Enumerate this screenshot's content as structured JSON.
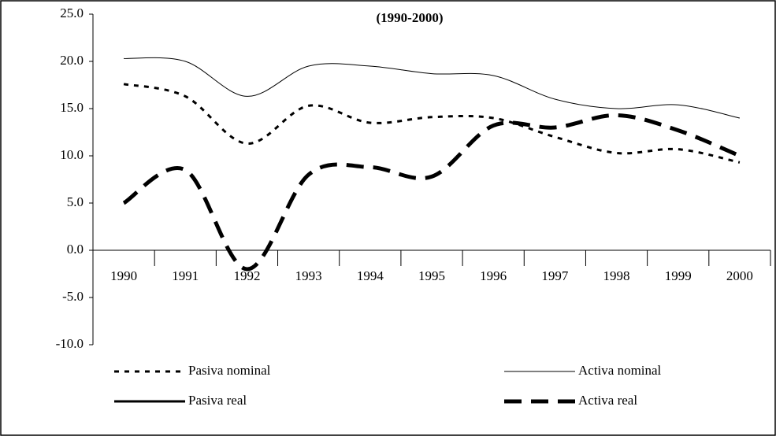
{
  "chart_data": {
    "type": "line",
    "title": "(1990-2000)",
    "categories": [
      "1990",
      "1991",
      "1992",
      "1993",
      "1994",
      "1995",
      "1996",
      "1997",
      "1998",
      "1999",
      "2000"
    ],
    "series": [
      {
        "name": "Pasiva nominal",
        "color": "#000000",
        "dash": "6,7",
        "width": 3,
        "values": [
          17.6,
          16.3,
          11.3,
          15.3,
          13.5,
          14.1,
          14.0,
          12.0,
          10.3,
          10.7,
          9.3
        ]
      },
      {
        "name": "Activa nominal",
        "color": "#000000",
        "dash": "none",
        "width": 1,
        "values": [
          20.3,
          20.0,
          16.3,
          19.5,
          19.5,
          18.7,
          18.5,
          16.0,
          15.0,
          15.4,
          14.0
        ]
      },
      {
        "name": "Pasiva real",
        "color": "#000000",
        "dash": "none",
        "width": 3,
        "values": [
          null,
          null,
          null,
          null,
          null,
          null,
          null,
          null,
          null,
          null,
          null
        ]
      },
      {
        "name": "Activa real",
        "color": "#000000",
        "dash": "22,12",
        "width": 5,
        "values": [
          5.0,
          8.5,
          -2.0,
          8.0,
          8.8,
          7.8,
          13.2,
          13.0,
          14.3,
          12.7,
          10.0
        ]
      }
    ],
    "ylim": [
      -10,
      25
    ],
    "yticks": [
      {
        "value": -10,
        "label": "-10.0"
      },
      {
        "value": -5,
        "label": "-5.0"
      },
      {
        "value": 0,
        "label": "0.0"
      },
      {
        "value": 5,
        "label": "5.0"
      },
      {
        "value": 10,
        "label": "10.0"
      },
      {
        "value": 15,
        "label": "15.0"
      },
      {
        "value": 20,
        "label": "20.0"
      },
      {
        "value": 25,
        "label": "25.0"
      }
    ],
    "legend": "bottom"
  }
}
